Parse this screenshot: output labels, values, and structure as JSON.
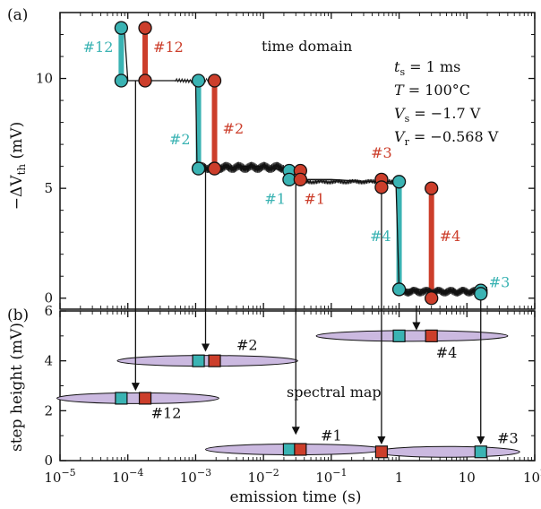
{
  "chart_data": [
    {
      "panel": "(a)",
      "type": "line",
      "subtitle": "time domain",
      "ylabel_main": "−ΔV",
      "ylabel_sub": "th",
      "ylabel_unit": " (mV)",
      "xscale": "log",
      "xlim": [
        1e-05,
        100
      ],
      "ylim": [
        -0.5,
        13
      ],
      "yticks": [
        "0",
        "5",
        "10"
      ],
      "yticks_values": [
        0,
        5,
        10
      ],
      "parameters": [
        {
          "sym": "t",
          "sub": "s",
          "rest": " = 1 ms"
        },
        {
          "sym": "T",
          "sub": "",
          "rest": " = 100°C"
        },
        {
          "sym": "V",
          "sub": "s",
          "rest": " = −1.7 V"
        },
        {
          "sym": "V",
          "sub": "r",
          "rest": " = −0.568 V"
        }
      ],
      "trace": {
        "x": [
          7e-05,
          7e-05,
          8e-05,
          9e-05,
          0.0001,
          0.00012,
          0.0002,
          0.0005,
          0.001,
          0.00105,
          0.0012,
          0.002,
          0.005,
          0.01,
          0.02,
          0.025,
          0.03,
          0.035,
          0.05,
          0.1,
          0.2,
          0.5,
          0.6,
          0.8,
          0.9,
          1.0,
          1.2,
          2,
          3,
          5,
          10,
          15,
          20
        ],
        "y": [
          12.3,
          12.3,
          12.2,
          12.0,
          9.9,
          9.9,
          9.9,
          9.9,
          9.9,
          5.9,
          5.9,
          5.9,
          6.0,
          6.0,
          5.8,
          5.7,
          5.5,
          5.4,
          5.4,
          5.4,
          5.35,
          5.3,
          5.25,
          5.2,
          5.2,
          0.4,
          0.4,
          0.4,
          0.35,
          0.35,
          0.3,
          0.3,
          0.25
        ]
      },
      "transitions": [
        {
          "label": "#12",
          "x": 8e-05,
          "y_high": 12.3,
          "y_low": 9.9,
          "series": "cyan",
          "label_side": "left",
          "label_y": 11.2
        },
        {
          "label": "#12",
          "x": 0.00018,
          "y_high": 12.3,
          "y_low": 9.9,
          "series": "red",
          "label_side": "right",
          "label_y": 11.2
        },
        {
          "label": "#2",
          "x": 0.0011,
          "y_high": 9.9,
          "y_low": 5.9,
          "series": "cyan",
          "label_side": "left",
          "label_y": 7.0
        },
        {
          "label": "#2",
          "x": 0.0019,
          "y_high": 9.9,
          "y_low": 5.9,
          "series": "red",
          "label_side": "right",
          "label_y": 7.5
        },
        {
          "label": "#1",
          "x": 0.024,
          "y_high": 5.8,
          "y_low": 5.4,
          "series": "cyan",
          "label_side": "below-left",
          "label_y": 4.3
        },
        {
          "label": "#1",
          "x": 0.035,
          "y_high": 5.8,
          "y_low": 5.4,
          "series": "red",
          "label_side": "below-right",
          "label_y": 4.3
        },
        {
          "label": "#4",
          "x": 1.0,
          "y_high": 5.3,
          "y_low": 0.4,
          "series": "cyan",
          "label_side": "left",
          "label_y": 2.6
        },
        {
          "label": "#4",
          "x": 3.0,
          "y_high": 5.0,
          "y_low": 0.0,
          "series": "red",
          "label_side": "right",
          "label_y": 2.6
        },
        {
          "label": "#3",
          "x": 0.55,
          "y_high": 5.4,
          "y_low": 5.05,
          "series": "red",
          "label_side": "above",
          "label_y": 6.4
        },
        {
          "label": "#3",
          "x": 16,
          "y_high": 0.35,
          "y_low": 0.2,
          "series": "cyan",
          "label_side": "right",
          "label_y": 0.5
        }
      ],
      "colors": {
        "cyan": "#3ab3b3",
        "red": "#cc3e2b",
        "trace": "#111111"
      }
    },
    {
      "panel": "(b)",
      "type": "scatter",
      "subtitle": "spectral map",
      "xlabel": "emission time (s)",
      "ylabel": "step height (mV)",
      "xscale": "log",
      "xlim": [
        1e-05,
        100
      ],
      "ylim": [
        0,
        6
      ],
      "yticks": [
        "0",
        "2",
        "4",
        "6"
      ],
      "yticks_values": [
        0,
        2,
        4,
        6
      ],
      "xticks": [
        {
          "base": "10",
          "exp": "−5",
          "value": 1e-05
        },
        {
          "base": "10",
          "exp": "−4",
          "value": 0.0001
        },
        {
          "base": "10",
          "exp": "−3",
          "value": 0.001
        },
        {
          "base": "10",
          "exp": "−2",
          "value": 0.01
        },
        {
          "base": "10",
          "exp": "−1",
          "value": 0.1
        },
        {
          "base": "1",
          "exp": "",
          "value": 1
        },
        {
          "base": "10",
          "exp": "",
          "value": 10
        },
        {
          "base": "10",
          "exp": "2",
          "value": 100
        }
      ],
      "traps": [
        {
          "label": "#12",
          "tau_cyan": 8e-05,
          "tau_red": 0.00018,
          "height": 2.5,
          "ell_lo": 9e-06,
          "ell_hi": 0.0022
        },
        {
          "label": "#2",
          "tau_cyan": 0.0011,
          "tau_red": 0.0019,
          "height": 4.0,
          "ell_lo": 7e-05,
          "ell_hi": 0.032
        },
        {
          "label": "#1",
          "tau_cyan": 0.024,
          "tau_red": 0.035,
          "height": 0.45,
          "ell_lo": 0.0014,
          "ell_hi": 0.6
        },
        {
          "label": "#4",
          "tau_cyan": 1.0,
          "tau_red": 3.0,
          "height": 5.0,
          "ell_lo": 0.06,
          "ell_hi": 40
        },
        {
          "label": "#3",
          "tau_red": 0.55,
          "tau_cyan": 16,
          "height": 0.35,
          "ell_lo": 0.45,
          "ell_hi": 60
        }
      ],
      "colors": {
        "cyan": "#3ab3b3",
        "red": "#cc3e2b",
        "ellipse": "#cbb9e0"
      }
    }
  ]
}
